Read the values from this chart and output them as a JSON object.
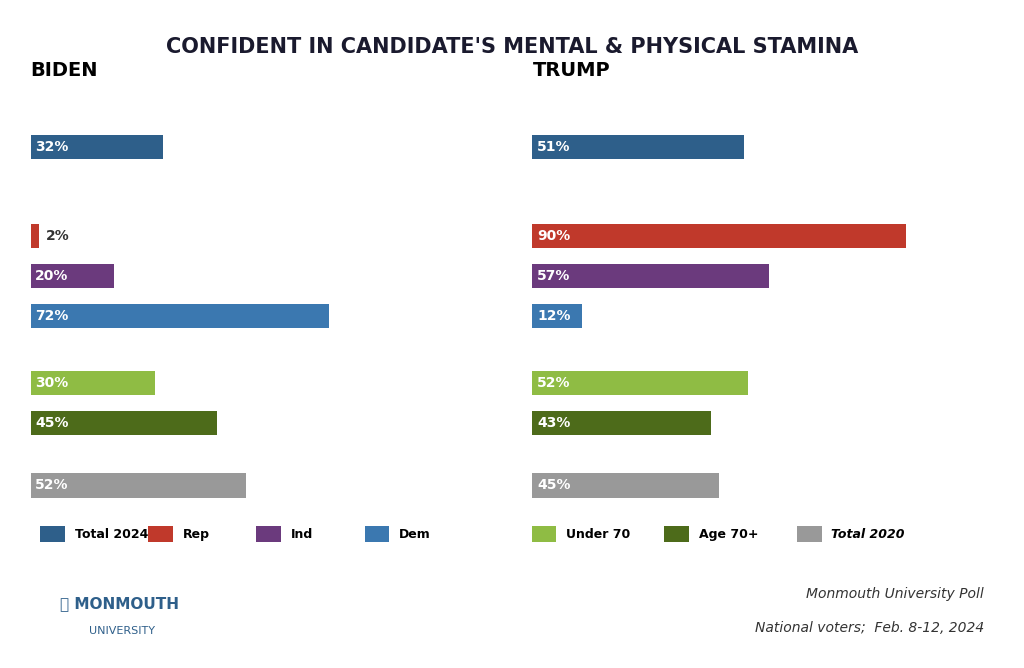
{
  "title": "CONFIDENT IN CANDIDATE'S MENTAL & PHYSICAL STAMINA",
  "title_bg": "#a8c8e0",
  "bg_color": "#ffffff",
  "biden_label": "BIDEN",
  "trump_label": "TRUMP",
  "biden_bars": [
    {
      "label": "Total 2024",
      "value": 32,
      "color": "#2e5f8a",
      "group": 0
    },
    {
      "label": "Rep",
      "value": 2,
      "color": "#c0392b",
      "group": 1
    },
    {
      "label": "Ind",
      "value": 20,
      "color": "#6b3a7d",
      "group": 1
    },
    {
      "label": "Dem",
      "value": 72,
      "color": "#3b78b0",
      "group": 1
    },
    {
      "label": "Under 70",
      "value": 30,
      "color": "#8fbc44",
      "group": 2
    },
    {
      "label": "Age 70+",
      "value": 45,
      "color": "#4d6b1a",
      "group": 2
    },
    {
      "label": "Total 2020",
      "value": 52,
      "color": "#999999",
      "group": 3
    }
  ],
  "trump_bars": [
    {
      "label": "Total 2024",
      "value": 51,
      "color": "#2e5f8a",
      "group": 0
    },
    {
      "label": "Rep",
      "value": 90,
      "color": "#c0392b",
      "group": 1
    },
    {
      "label": "Ind",
      "value": 57,
      "color": "#6b3a7d",
      "group": 1
    },
    {
      "label": "Dem",
      "value": 12,
      "color": "#3b78b0",
      "group": 1
    },
    {
      "label": "Under 70",
      "value": 52,
      "color": "#8fbc44",
      "group": 2
    },
    {
      "label": "Age 70+",
      "value": 43,
      "color": "#4d6b1a",
      "group": 2
    },
    {
      "label": "Total 2020",
      "value": 45,
      "color": "#999999",
      "group": 3
    }
  ],
  "legend_left": [
    {
      "label": "Total 2024",
      "color": "#2e5f8a"
    },
    {
      "label": "Rep",
      "color": "#c0392b"
    },
    {
      "label": "Ind",
      "color": "#6b3a7d"
    },
    {
      "label": "Dem",
      "color": "#3b78b0"
    }
  ],
  "legend_right": [
    {
      "label": "Under 70",
      "color": "#8fbc44"
    },
    {
      "label": "Age 70+",
      "color": "#4d6b1a"
    },
    {
      "label": "Total 2020",
      "color": "#999999"
    }
  ],
  "poll_text1": "Monmouth University Poll",
  "poll_text2": "National voters;  Feb. 8-12, 2024",
  "max_value": 100,
  "bar_height": 0.55
}
